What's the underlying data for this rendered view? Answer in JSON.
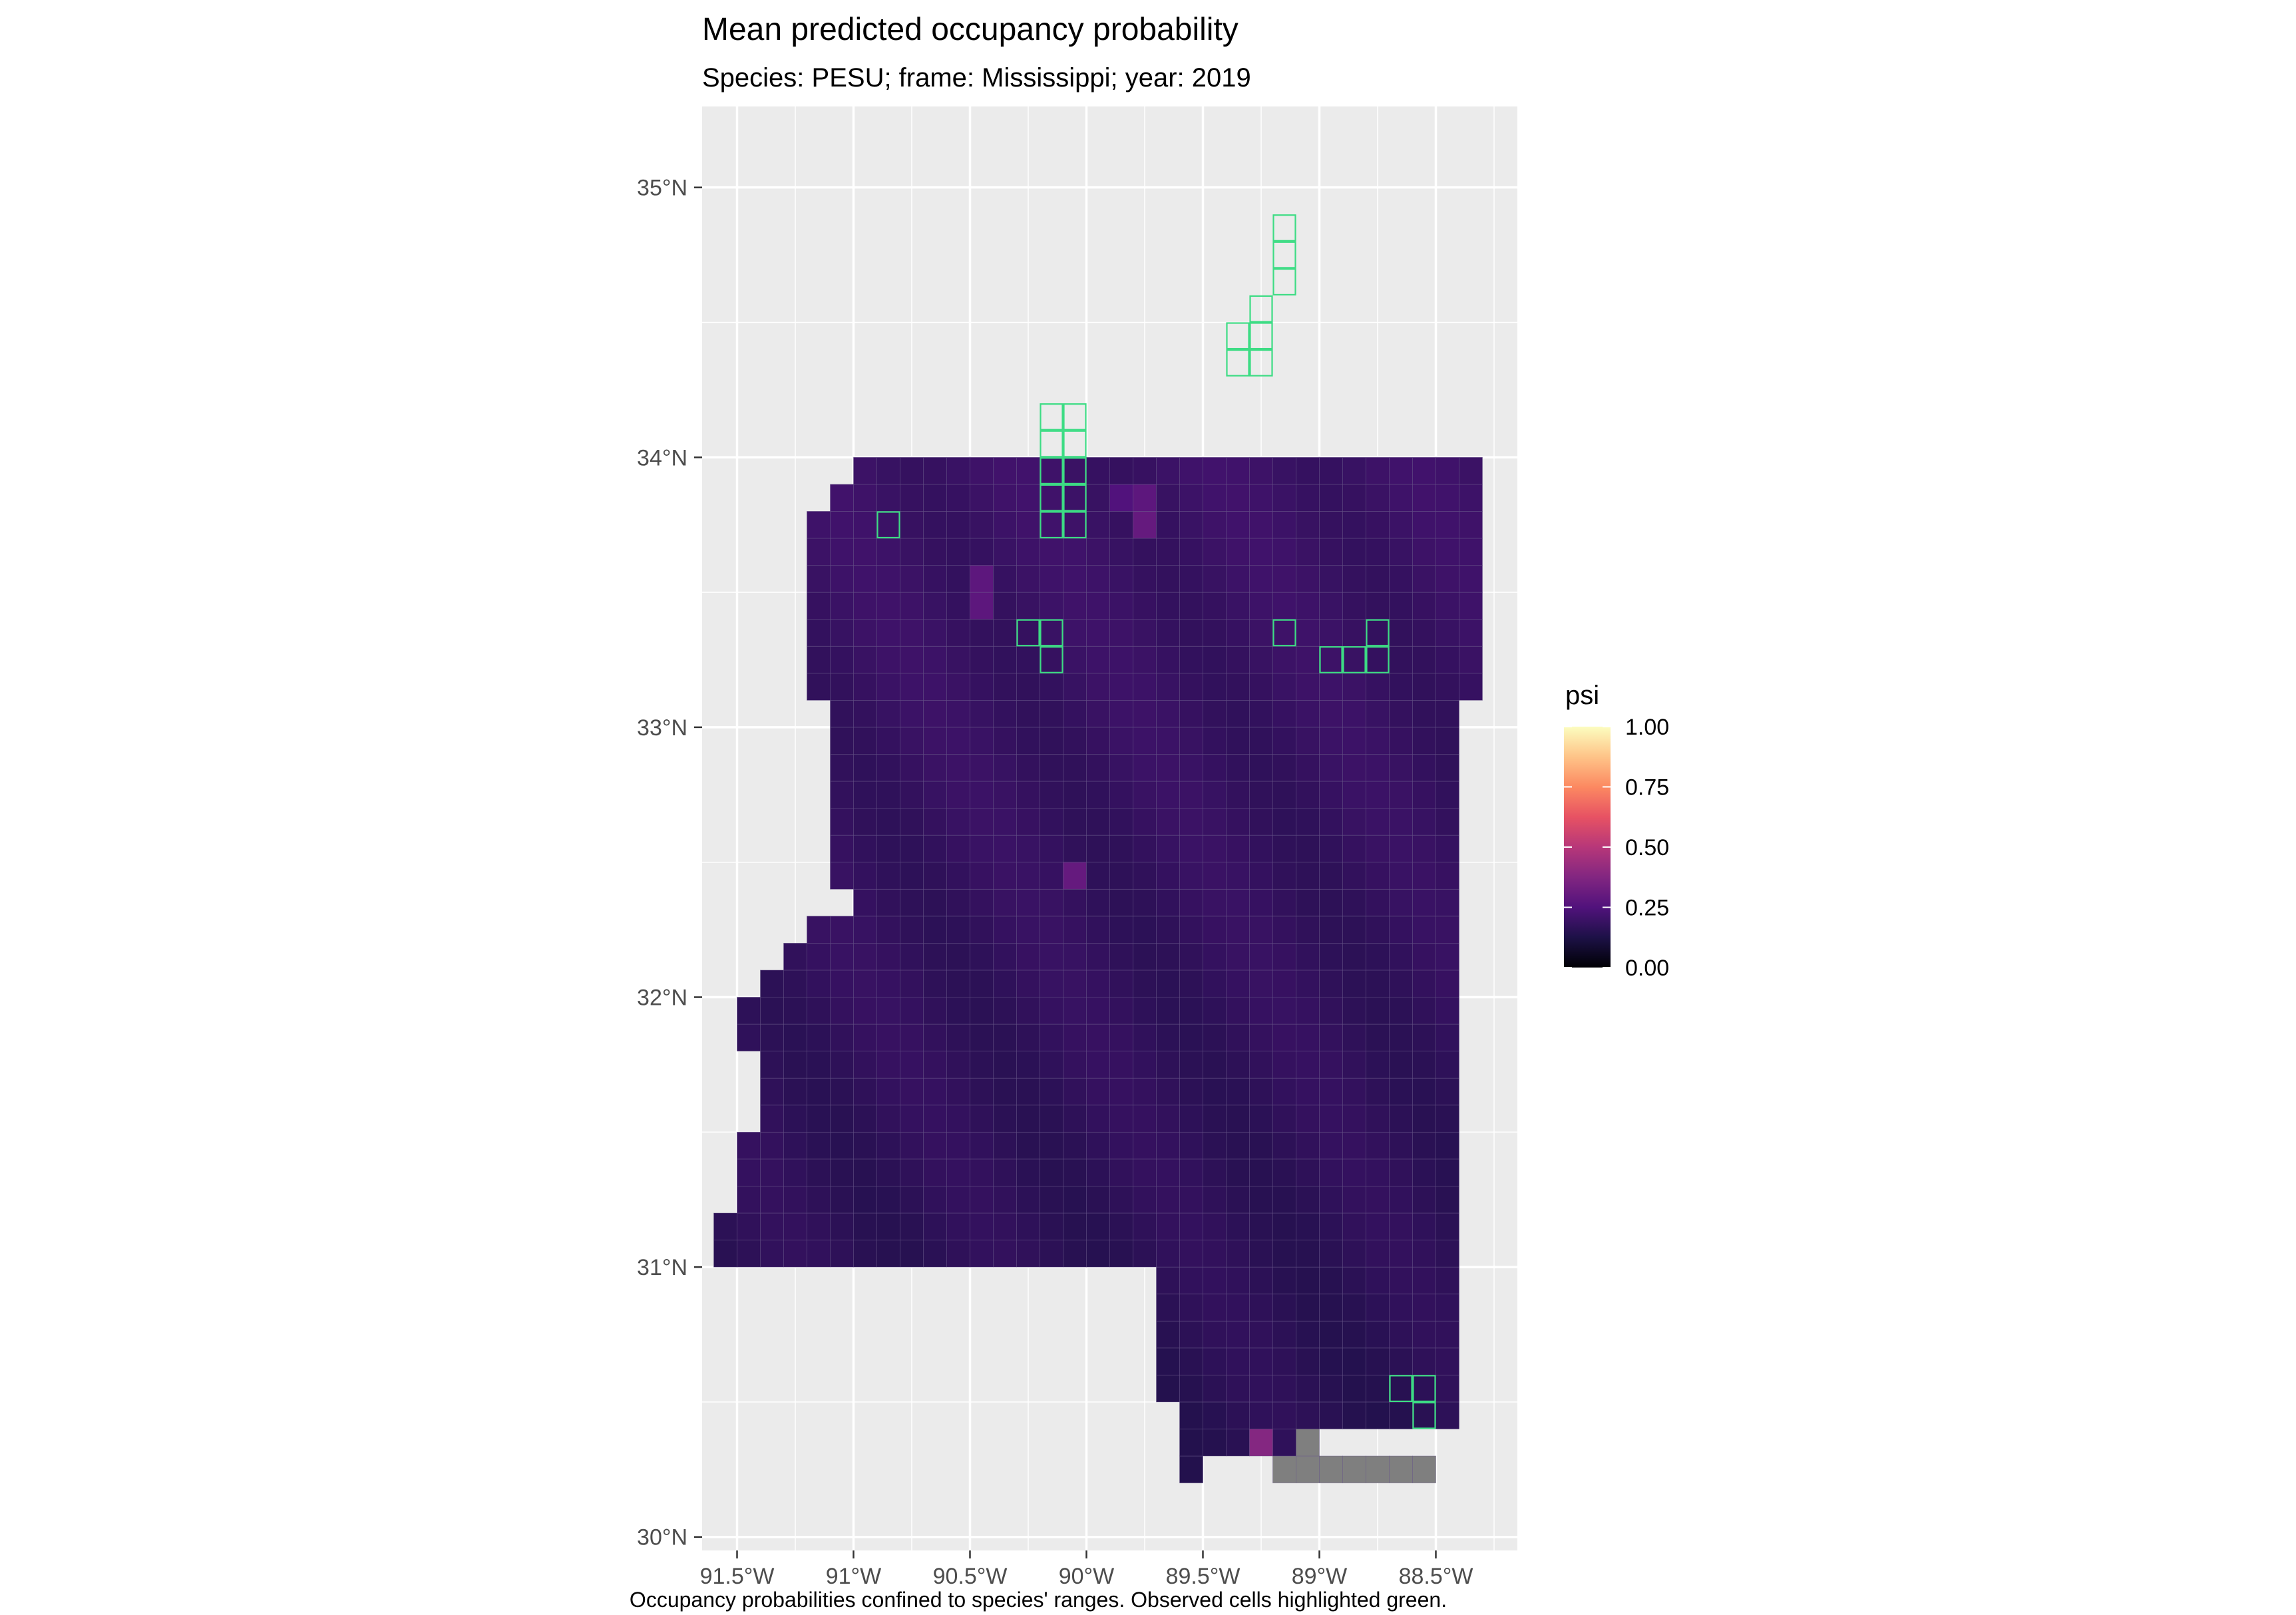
{
  "chart_data": {
    "type": "heatmap",
    "title": "Mean predicted occupancy probability",
    "subtitle": "Species: PESU; frame: Mississippi; year: 2019",
    "caption": "Occupancy probabilities confined to species' ranges. Observed cells highlighted green.",
    "x_ticks": [
      {
        "value": -91.5,
        "label": "91.5°W"
      },
      {
        "value": -91.0,
        "label": "91°W"
      },
      {
        "value": -90.5,
        "label": "90.5°W"
      },
      {
        "value": -90.0,
        "label": "90°W"
      },
      {
        "value": -89.5,
        "label": "89.5°W"
      },
      {
        "value": -89.0,
        "label": "89°W"
      },
      {
        "value": -88.5,
        "label": "88.5°W"
      }
    ],
    "y_ticks": [
      {
        "value": 30,
        "label": "30°N"
      },
      {
        "value": 31,
        "label": "31°N"
      },
      {
        "value": 32,
        "label": "32°N"
      },
      {
        "value": 33,
        "label": "33°N"
      },
      {
        "value": 34,
        "label": "34°N"
      },
      {
        "value": 35,
        "label": "35°N"
      }
    ],
    "xlim": [
      -91.65,
      -88.15
    ],
    "ylim": [
      29.95,
      35.3
    ],
    "grid": true,
    "legend": {
      "title": "psi",
      "placement": "right",
      "ticks": [
        {
          "value": 1.0,
          "label": "1.00"
        },
        {
          "value": 0.75,
          "label": "0.75"
        },
        {
          "value": 0.5,
          "label": "0.50"
        },
        {
          "value": 0.25,
          "label": "0.25"
        },
        {
          "value": 0.0,
          "label": "0.00"
        }
      ],
      "colormap": "magma",
      "range": [
        0,
        1
      ]
    },
    "cell_size_deg": 0.1,
    "typical_psi": 0.18,
    "highlighted_cells_psi": [
      {
        "lon": -89.65,
        "lat": 34.45,
        "psi": 0.35
      },
      {
        "lon": -89.75,
        "lat": 34.45,
        "psi": 0.3
      },
      {
        "lon": -89.75,
        "lat": 34.35,
        "psi": 0.3
      },
      {
        "lon": -89.85,
        "lat": 34.15,
        "psi": 0.28
      },
      {
        "lon": -89.75,
        "lat": 34.15,
        "psi": 0.28
      },
      {
        "lon": -89.75,
        "lat": 33.85,
        "psi": 0.28
      },
      {
        "lon": -89.75,
        "lat": 33.75,
        "psi": 0.3
      },
      {
        "lon": -89.85,
        "lat": 33.85,
        "psi": 0.25
      },
      {
        "lon": -90.45,
        "lat": 33.55,
        "psi": 0.28
      },
      {
        "lon": -90.45,
        "lat": 33.45,
        "psi": 0.28
      },
      {
        "lon": -90.05,
        "lat": 32.45,
        "psi": 0.3
      },
      {
        "lon": -90.05,
        "lat": 34.75,
        "psi": 0.27
      },
      {
        "lon": -88.25,
        "lat": 34.55,
        "psi": 0.3
      },
      {
        "lon": -89.25,
        "lat": 30.35,
        "psi": 0.38
      },
      {
        "lon": -88.55,
        "lat": 30.35,
        "psi": 0.35
      },
      {
        "lon": -88.65,
        "lat": 30.35,
        "psi": 0.35
      },
      {
        "lon": -88.75,
        "lat": 30.35,
        "psi": 0.33
      },
      {
        "lon": -88.85,
        "lat": 30.35,
        "psi": 0.3
      }
    ],
    "observed_cells": [
      {
        "lon": -89.15,
        "lat": 34.85
      },
      {
        "lon": -89.15,
        "lat": 34.75
      },
      {
        "lon": -89.15,
        "lat": 34.65
      },
      {
        "lon": -89.25,
        "lat": 34.55
      },
      {
        "lon": -89.35,
        "lat": 34.45
      },
      {
        "lon": -89.25,
        "lat": 34.45
      },
      {
        "lon": -89.35,
        "lat": 34.35
      },
      {
        "lon": -89.25,
        "lat": 34.35
      },
      {
        "lon": -90.15,
        "lat": 34.15
      },
      {
        "lon": -90.05,
        "lat": 34.15
      },
      {
        "lon": -90.15,
        "lat": 34.05
      },
      {
        "lon": -90.05,
        "lat": 34.05
      },
      {
        "lon": -90.15,
        "lat": 33.95
      },
      {
        "lon": -90.05,
        "lat": 33.95
      },
      {
        "lon": -90.15,
        "lat": 33.85
      },
      {
        "lon": -90.05,
        "lat": 33.85
      },
      {
        "lon": -90.15,
        "lat": 33.75
      },
      {
        "lon": -90.05,
        "lat": 33.75
      },
      {
        "lon": -90.85,
        "lat": 33.75
      },
      {
        "lon": -90.25,
        "lat": 33.35
      },
      {
        "lon": -90.15,
        "lat": 33.35
      },
      {
        "lon": -90.15,
        "lat": 33.25
      },
      {
        "lon": -89.15,
        "lat": 33.35
      },
      {
        "lon": -88.95,
        "lat": 33.25
      },
      {
        "lon": -88.85,
        "lat": 33.25
      },
      {
        "lon": -88.75,
        "lat": 33.35
      },
      {
        "lon": -88.75,
        "lat": 33.25
      },
      {
        "lon": -88.65,
        "lat": 30.55
      },
      {
        "lon": -88.55,
        "lat": 30.55
      },
      {
        "lon": -88.55,
        "lat": 30.45
      }
    ],
    "na_cells": [
      {
        "lon": -89.05,
        "lat": 30.35
      },
      {
        "lon": -89.15,
        "lat": 30.25
      },
      {
        "lon": -89.05,
        "lat": 30.25
      },
      {
        "lon": -88.95,
        "lat": 30.25
      },
      {
        "lon": -88.85,
        "lat": 30.25
      },
      {
        "lon": -88.75,
        "lat": 30.25
      },
      {
        "lon": -88.65,
        "lat": 30.25
      },
      {
        "lon": -88.55,
        "lat": 30.25
      }
    ]
  },
  "colors": {
    "panel_background": "#ebebeb",
    "grid_line": "#ffffff",
    "cell_outline": "#6a5a8a",
    "observed_outline": "#3ddc84",
    "na_fill": "#7f7f7f"
  }
}
